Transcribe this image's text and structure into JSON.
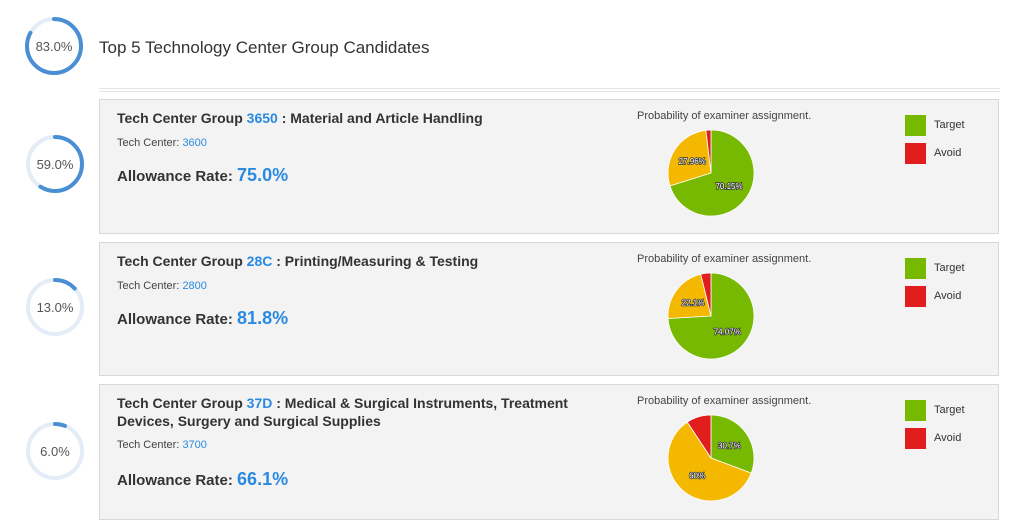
{
  "header": {
    "overall_score": "83.0%",
    "overall_fraction": 0.83,
    "title": "Top 5 Technology Center Group Candidates"
  },
  "colors": {
    "accent": "#2a8ae0",
    "ring": "#4a8fd4",
    "target": "#76b900",
    "avoid": "#e11d1d",
    "neutral": "#f5b800"
  },
  "candidates": [
    {
      "score": "59.0%",
      "score_fraction": 0.59,
      "title_prefix": "Tech Center Group",
      "group_code": "3650",
      "group_name": ": Material and Article Handling",
      "tech_center_label": "Tech Center:",
      "tech_center": "3600",
      "allowance_label": "Allowance Rate:",
      "allowance_rate": "75.0%",
      "prob_caption": "Probability of examiner assignment.",
      "legend": {
        "target": "Target",
        "avoid": "Avoid"
      },
      "pie": {
        "target": 70.15,
        "neutral": 27.96,
        "avoid": 1.89,
        "target_label": "70.15%",
        "neutral_label": "27.96%"
      }
    },
    {
      "score": "13.0%",
      "score_fraction": 0.13,
      "title_prefix": "Tech Center Group",
      "group_code": "28C",
      "group_name": ": Printing/Measuring & Testing",
      "tech_center_label": "Tech Center:",
      "tech_center": "2800",
      "allowance_label": "Allowance Rate:",
      "allowance_rate": "81.8%",
      "prob_caption": "Probability of examiner assignment.",
      "legend": {
        "target": "Target",
        "avoid": "Avoid"
      },
      "pie": {
        "target": 74.07,
        "neutral": 22.1,
        "avoid": 3.83,
        "target_label": "74.07%",
        "neutral_label": "22.1%"
      }
    },
    {
      "score": "6.0%",
      "score_fraction": 0.06,
      "title_prefix": "Tech Center Group",
      "group_code": "37D",
      "group_name": ": Medical & Surgical Instruments, Treatment Devices, Surgery and Surgical Supplies",
      "tech_center_label": "Tech Center:",
      "tech_center": "3700",
      "allowance_label": "Allowance Rate:",
      "allowance_rate": "66.1%",
      "prob_caption": "Probability of examiner assignment.",
      "legend": {
        "target": "Target",
        "avoid": "Avoid"
      },
      "pie": {
        "target": 30.7,
        "neutral": 60,
        "avoid": 9.3,
        "target_label": "30.7%",
        "neutral_label": "60%"
      }
    }
  ]
}
